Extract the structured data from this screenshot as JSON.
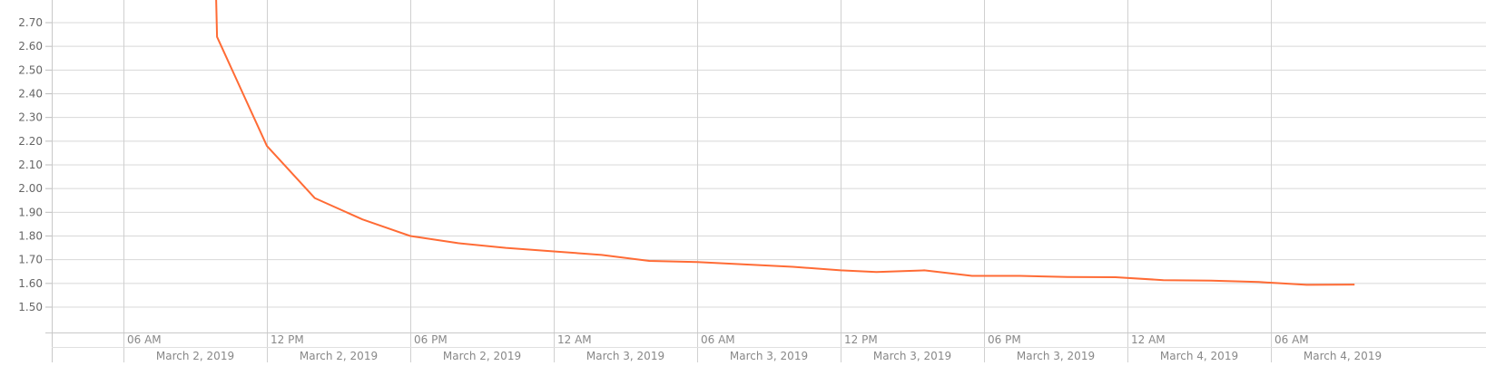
{
  "chart_data": {
    "type": "line",
    "title": "",
    "xlabel": "",
    "ylabel": "",
    "grid": true,
    "x_range": [
      "2019-03-02T03:00",
      "2019-03-04T15:00"
    ],
    "ylim": [
      1.4,
      2.75
    ],
    "y_ticks": [
      1.5,
      1.6,
      1.7,
      1.8,
      1.9,
      2.0,
      2.1,
      2.2,
      2.3,
      2.4,
      2.5,
      2.6,
      2.7
    ],
    "y_tick_labels": [
      "1.50",
      "1.60",
      "1.70",
      "1.80",
      "1.90",
      "2.00",
      "2.10",
      "2.20",
      "2.30",
      "2.40",
      "2.50",
      "2.60",
      "2.70"
    ],
    "x_ticks": [
      {
        "t": "2019-03-02T06:00",
        "time_label": "06 AM",
        "date_label": "March 2, 2019"
      },
      {
        "t": "2019-03-02T12:00",
        "time_label": "12 PM",
        "date_label": "March 2, 2019"
      },
      {
        "t": "2019-03-02T18:00",
        "time_label": "06 PM",
        "date_label": "March 2, 2019"
      },
      {
        "t": "2019-03-03T00:00",
        "time_label": "12 AM",
        "date_label": "March 3, 2019"
      },
      {
        "t": "2019-03-03T06:00",
        "time_label": "06 AM",
        "date_label": "March 3, 2019"
      },
      {
        "t": "2019-03-03T12:00",
        "time_label": "12 PM",
        "date_label": "March 3, 2019"
      },
      {
        "t": "2019-03-03T18:00",
        "time_label": "06 PM",
        "date_label": "March 3, 2019"
      },
      {
        "t": "2019-03-04T00:00",
        "time_label": "12 AM",
        "date_label": "March 4, 2019"
      },
      {
        "t": "2019-03-04T06:00",
        "time_label": "06 AM",
        "date_label": "March 4, 2019"
      }
    ],
    "series": [
      {
        "color": "#ff6b35",
        "points": [
          {
            "x": "2019-03-02T09:52",
            "y": 2.85
          },
          {
            "x": "2019-03-02T09:55",
            "y": 2.64
          },
          {
            "x": "2019-03-02T12:00",
            "y": 2.18
          },
          {
            "x": "2019-03-02T14:00",
            "y": 1.96
          },
          {
            "x": "2019-03-02T16:00",
            "y": 1.87
          },
          {
            "x": "2019-03-02T18:00",
            "y": 1.8
          },
          {
            "x": "2019-03-02T20:00",
            "y": 1.77
          },
          {
            "x": "2019-03-02T22:00",
            "y": 1.75
          },
          {
            "x": "2019-03-03T00:00",
            "y": 1.735
          },
          {
            "x": "2019-03-03T02:00",
            "y": 1.72
          },
          {
            "x": "2019-03-03T04:00",
            "y": 1.695
          },
          {
            "x": "2019-03-03T06:00",
            "y": 1.69
          },
          {
            "x": "2019-03-03T08:00",
            "y": 1.68
          },
          {
            "x": "2019-03-03T10:00",
            "y": 1.67
          },
          {
            "x": "2019-03-03T12:00",
            "y": 1.655
          },
          {
            "x": "2019-03-03T13:30",
            "y": 1.648
          },
          {
            "x": "2019-03-03T15:30",
            "y": 1.655
          },
          {
            "x": "2019-03-03T17:30",
            "y": 1.632
          },
          {
            "x": "2019-03-03T19:30",
            "y": 1.632
          },
          {
            "x": "2019-03-03T21:30",
            "y": 1.627
          },
          {
            "x": "2019-03-03T23:30",
            "y": 1.626
          },
          {
            "x": "2019-03-04T01:30",
            "y": 1.614
          },
          {
            "x": "2019-03-04T03:30",
            "y": 1.612
          },
          {
            "x": "2019-03-04T05:30",
            "y": 1.606
          },
          {
            "x": "2019-03-04T07:30",
            "y": 1.594
          },
          {
            "x": "2019-03-04T09:30",
            "y": 1.595
          }
        ]
      }
    ]
  }
}
